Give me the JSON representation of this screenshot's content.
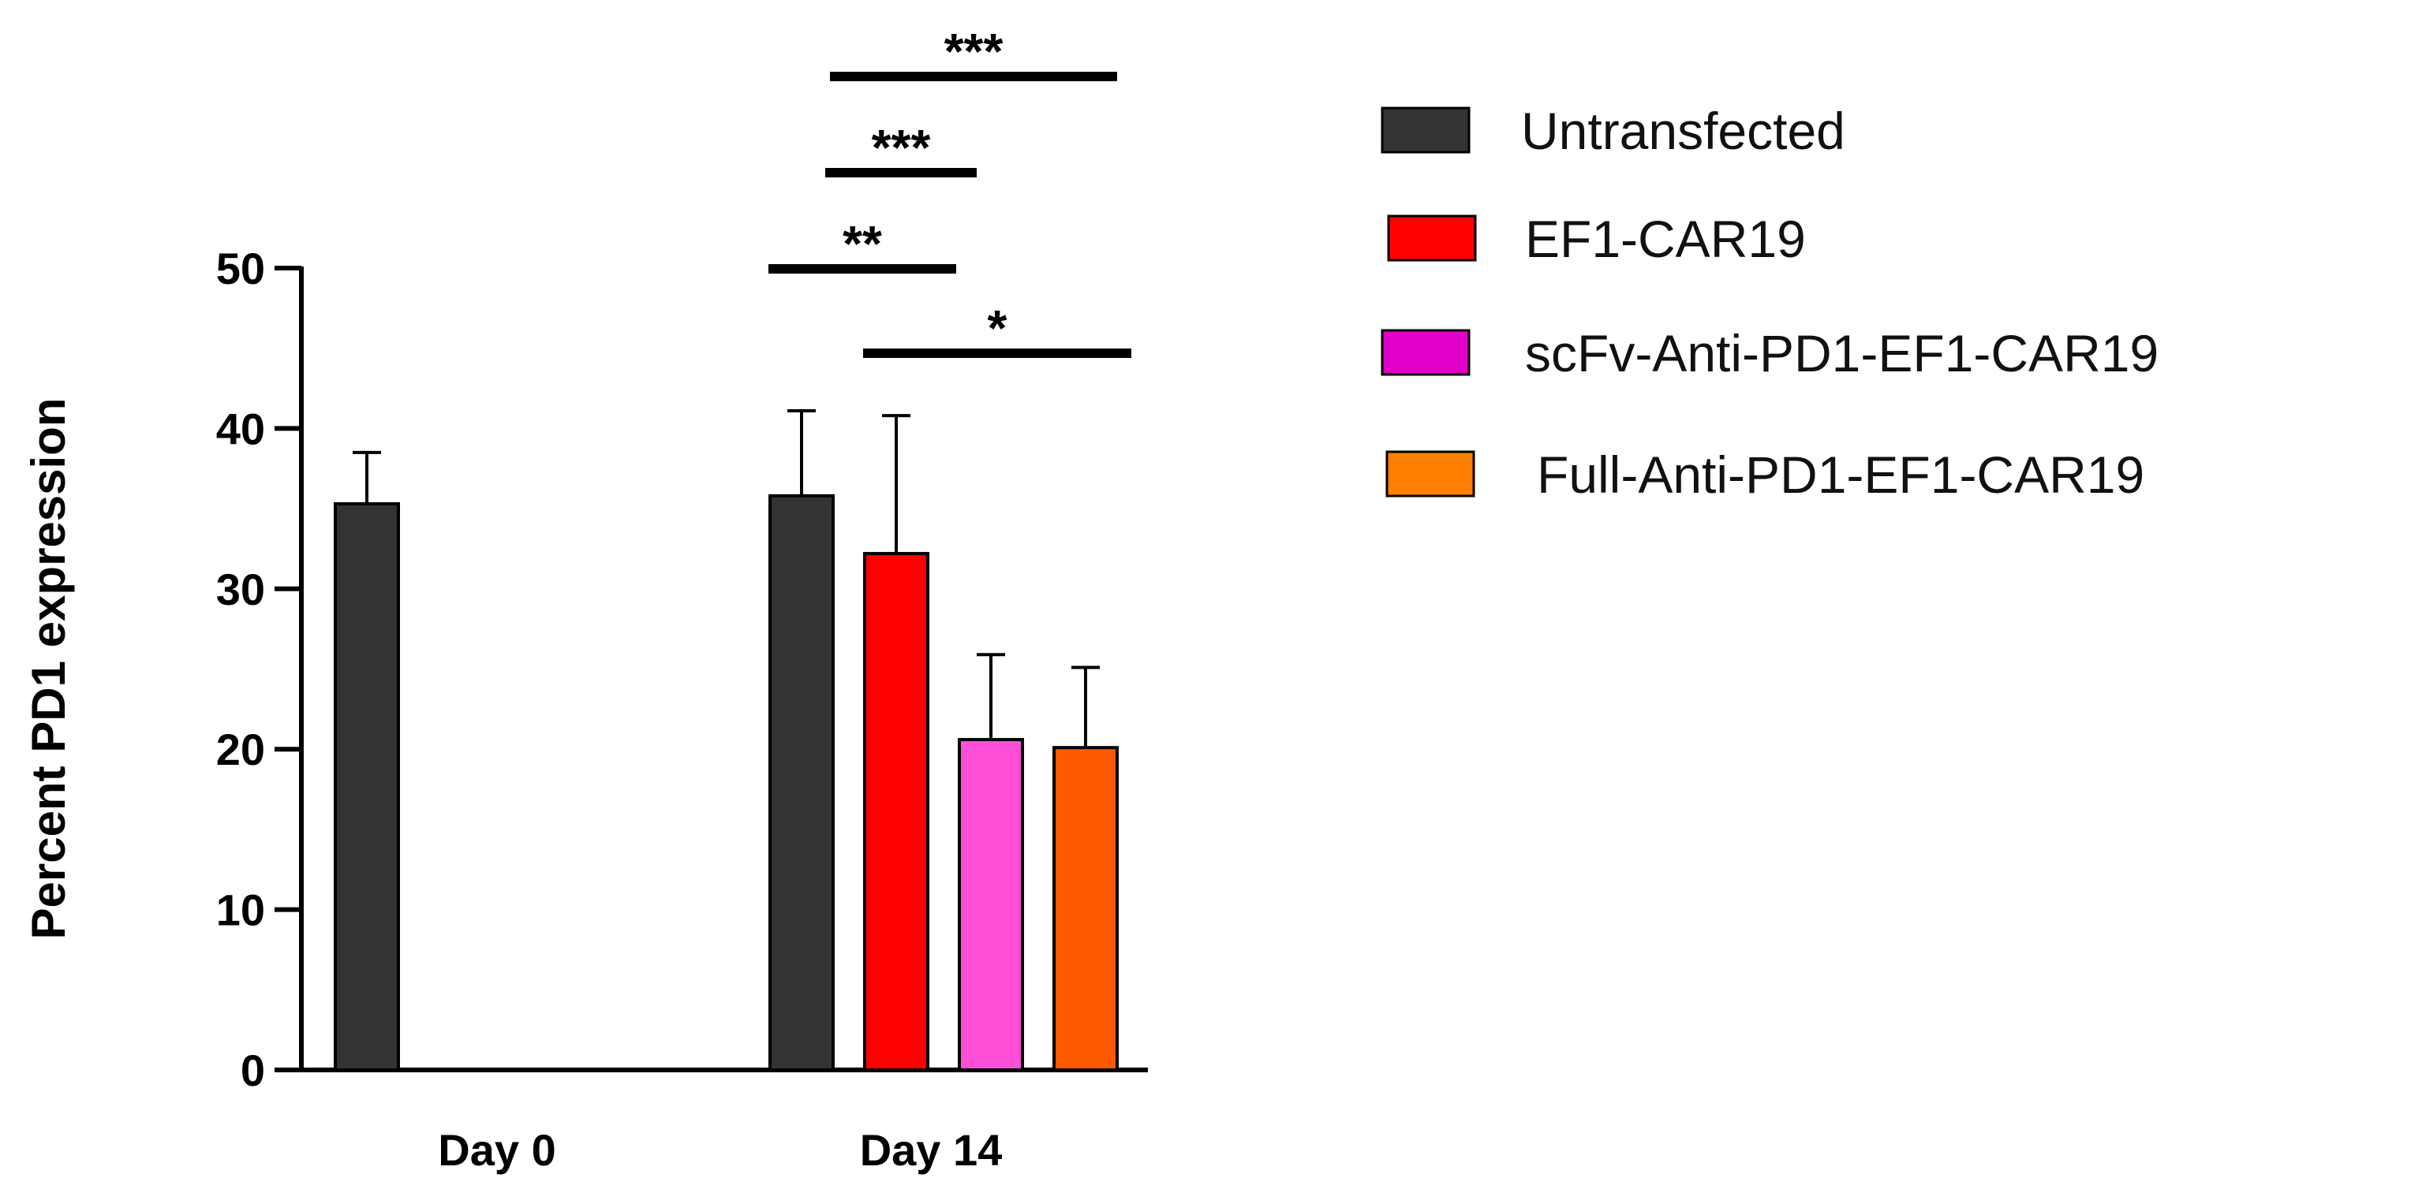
{
  "chart_data": {
    "type": "bar",
    "ylabel": "Percent PD1 expression",
    "xlabel": "",
    "ylim": [
      0,
      50
    ],
    "yticks": [
      0,
      10,
      20,
      30,
      40,
      50
    ],
    "grid": false,
    "legend_position": "right",
    "categories": [
      "Day 0",
      "Day 14"
    ],
    "series": [
      {
        "name": "Untransfected",
        "color": "#333333",
        "values": [
          35.3,
          35.8
        ],
        "errors": [
          3.2,
          5.3
        ]
      },
      {
        "name": "EF1-CAR19",
        "color": "#ff0000",
        "values": [
          null,
          32.2
        ],
        "errors": [
          null,
          8.6
        ]
      },
      {
        "name": "scFv-Anti-PD1-EF1-CAR19",
        "color": "#ff4fd8",
        "legend_color": "#e000c8",
        "values": [
          null,
          20.6
        ],
        "errors": [
          null,
          5.3
        ]
      },
      {
        "name": "Full-Anti-PD1-EF1-CAR19",
        "color": "#ff5a00",
        "legend_color": "#ff8000",
        "values": [
          null,
          20.1
        ],
        "errors": [
          null,
          5.0
        ]
      }
    ],
    "significance": [
      {
        "label": "***",
        "from_series": 0,
        "to_series": 3,
        "category": "Day 14",
        "level": 3
      },
      {
        "label": "***",
        "from_series": 0,
        "to_series": 2,
        "category": "Day 14",
        "level": 2
      },
      {
        "label": "**",
        "from_series": 0,
        "to_series": 1,
        "category": "Day 14",
        "level": 1
      },
      {
        "label": "*",
        "from_series": 1,
        "to_series": 3,
        "category": "Day 14",
        "level": 0
      }
    ]
  }
}
